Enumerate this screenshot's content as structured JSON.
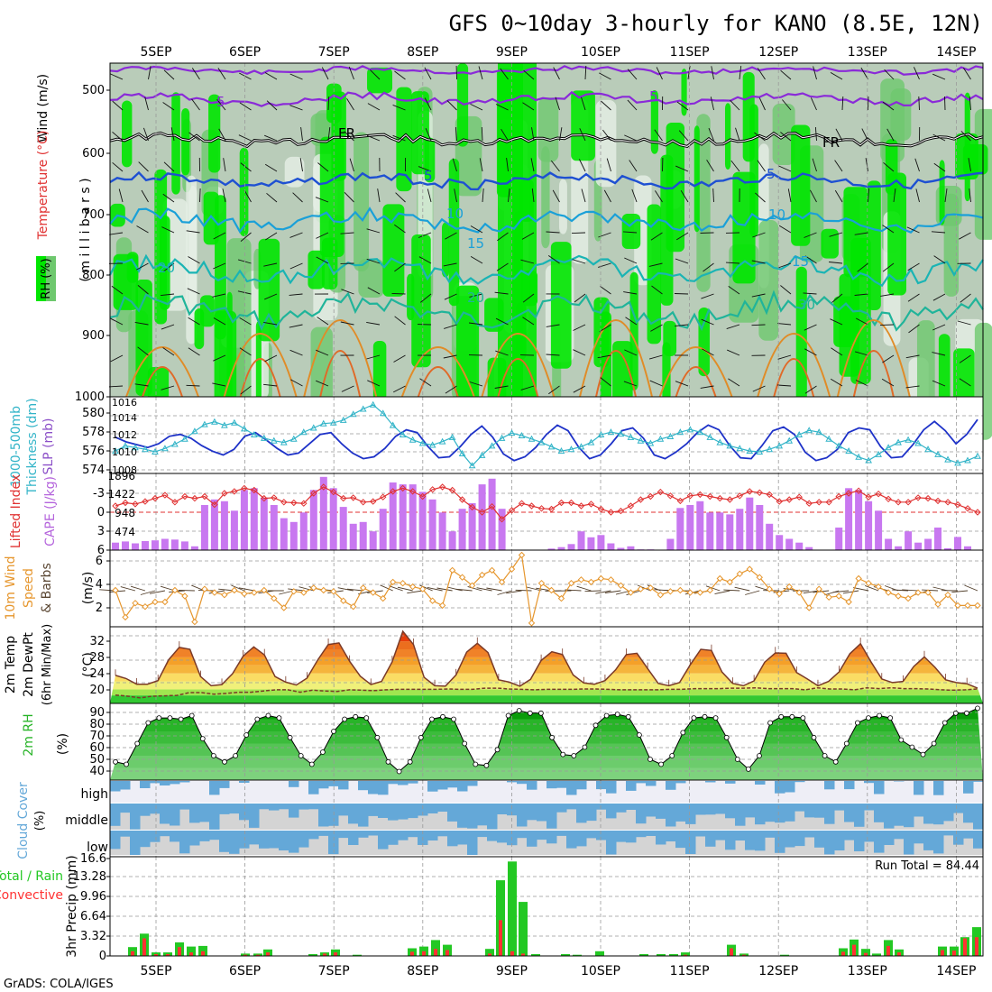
{
  "title": "GFS 0~10day 3-hourly for KANO (8.5E, 12N)",
  "footer": "GrADS: COLA/IGES",
  "dates": [
    "5SEP",
    "6SEP",
    "7SEP",
    "8SEP",
    "9SEP",
    "10SEP",
    "11SEP",
    "12SEP",
    "13SEP",
    "14SEP"
  ],
  "colors": {
    "rh_green": "#00e600",
    "rh_mid": "#6ec86e",
    "rh_gray": "#c8d4c8",
    "temp_purple": "#8a2ad8",
    "temp_blue": "#1e50d2",
    "temp_cyan": "#1aa0d8",
    "temp_teal": "#1ab4b4",
    "temp_orange": "#e08c28",
    "thickness": "#1e32c8",
    "slp": "#32b4c8",
    "cape": "#c878f0",
    "lifted": "#e03232",
    "wind": "#e6962d",
    "barb": "#503c28",
    "precip_total": "#23c823",
    "precip_conv": "#ff3232",
    "cloud": "#64a8d8"
  },
  "panels": {
    "upper": {
      "ylabel_wind": "Wind (m/s)",
      "ylabel_temp": "Temperature (°C)",
      "ylabel_rh": "RH (%)",
      "ylabel_mb": "( m i l l i b a r s )",
      "yticks": [
        "500",
        "600",
        "700",
        "800",
        "900",
        "1000"
      ],
      "contour_labels": [
        "5",
        "5",
        "FR",
        "FR",
        "5",
        "5",
        "10",
        "10",
        "15",
        "15",
        "20",
        "20",
        "30"
      ]
    },
    "thick": {
      "ylabel1": "1000-500mb",
      "ylabel2": "Thickness (dm)",
      "ylabel3": "SLP (mb)",
      "lticks": [
        "580",
        "578",
        "576",
        "574"
      ],
      "rticks": [
        "1016",
        "1014",
        "1012",
        "1010",
        "1008"
      ]
    },
    "cape": {
      "ylabel1": "Lifted Index",
      "ylabel2": "CAPE (J/kg)",
      "lticks": [
        "-3",
        "0",
        "3",
        "6"
      ],
      "rticks": [
        "1896",
        "1422",
        "948",
        "474"
      ]
    },
    "wind": {
      "ylabel1": "10m Wind",
      "ylabel2": "Speed",
      "ylabel3": "& Barbs",
      "unit": "(m/s)",
      "yticks": [
        "6",
        "4",
        "2"
      ]
    },
    "temp2m": {
      "ylabel1": "2m Temp",
      "ylabel2": "2m DewPt",
      "ylabel3": "(6hr Min/Max)",
      "unit": "(°C)",
      "yticks": [
        "32",
        "28",
        "24",
        "20"
      ]
    },
    "rh2m": {
      "ylabel": "2m RH",
      "unit": "(%)",
      "yticks": [
        "90",
        "80",
        "70",
        "60",
        "50",
        "40"
      ]
    },
    "cloud": {
      "ylabel1": "Cloud Cover",
      "unit": "(%)",
      "levels": [
        "high",
        "middle",
        "low"
      ]
    },
    "precip": {
      "ylabel1": "Total / Rain",
      "ylabel2": "Convective",
      "ylabel3": "3hr Precip (mm)",
      "yticks": [
        "16.6",
        "13.28",
        "9.96",
        "6.64",
        "3.32",
        "0"
      ],
      "run_total": "Run Total = 84.44"
    }
  },
  "chart_data": {
    "type": "meteogram",
    "title": "GFS 0~10day 3-hourly for KANO (8.5E, 12N)",
    "dates": [
      "5SEP",
      "6SEP",
      "7SEP",
      "8SEP",
      "9SEP",
      "10SEP",
      "11SEP",
      "12SEP",
      "13SEP",
      "14SEP"
    ],
    "thickness_dm": [
      577.5,
      577,
      576.7,
      576.4,
      576.8,
      577.6,
      577.8,
      577.4,
      576.6,
      576,
      575.6,
      576.2,
      577.6,
      578,
      577.2,
      576.3,
      575.6,
      575.8,
      576.8,
      577.8,
      578,
      576.8,
      575.8,
      575.2,
      575.4,
      576.3,
      577.6,
      578.3,
      578,
      576.5,
      575.3,
      575.4,
      576.5,
      577.8,
      578.7,
      577.5,
      575.7,
      575,
      575.4,
      576.4,
      577.8,
      578.8,
      578.2,
      576.4,
      575.2,
      575.6,
      576.8,
      578.2,
      578.5,
      577.4,
      575.6,
      575.2,
      575.9,
      576.8,
      578,
      578.8,
      578.3,
      576.6,
      575.3,
      575.2,
      576.6,
      578.2,
      578.6,
      577.8,
      575.9,
      575,
      575.3,
      576.2,
      578,
      578.5,
      578.3,
      576.5,
      575.3,
      575.4,
      576.7,
      578.3,
      579.2,
      578.2,
      576.8,
      577.8,
      579.4
    ],
    "slp_mb": [
      1010.2,
      1010.8,
      1010.6,
      1010.4,
      1010.1,
      1010.5,
      1011,
      1011.6,
      1012.5,
      1013.3,
      1013.6,
      1013.2,
      1013.5,
      1012.8,
      1012.1,
      1011.7,
      1011.4,
      1011.2,
      1011.6,
      1012.4,
      1012.9,
      1013.4,
      1013.5,
      1013.8,
      1014.5,
      1015.1,
      1015.6,
      1014.6,
      1013.2,
      1012.1,
      1011.5,
      1011.1,
      1010.9,
      1011.3,
      1011.8,
      1009.9,
      1008.5,
      1009.7,
      1010.8,
      1011.7,
      1012.3,
      1012,
      1011.6,
      1011.2,
      1010.7,
      1010.2,
      1010.4,
      1010.7,
      1011.2,
      1012.1,
      1012.4,
      1012.2,
      1011.8,
      1011.4,
      1011.1,
      1011.6,
      1011.9,
      1012.4,
      1012.7,
      1012.4,
      1011.8,
      1011.2,
      1010.8,
      1010.5,
      1010.2,
      1010.1,
      1010.4,
      1010.8,
      1011.4,
      1012.1,
      1012.6,
      1012.4,
      1011.6,
      1010.8,
      1010.2,
      1009.5,
      1009.1,
      1009.8,
      1010.6,
      1011.2,
      1011.5,
      1011.1,
      1010.4,
      1009.8,
      1009.2,
      1008.8,
      1009.1,
      1009.6
    ],
    "cape_jkg": [
      200,
      230,
      180,
      240,
      260,
      300,
      280,
      230,
      100,
      1200,
      1350,
      1300,
      1050,
      1600,
      1650,
      1400,
      1200,
      850,
      750,
      1000,
      1600,
      1950,
      1650,
      1150,
      700,
      750,
      500,
      1100,
      1800,
      1750,
      1750,
      1550,
      1350,
      1000,
      500,
      1100,
      1250,
      1750,
      1900,
      1100,
      0,
      0,
      0,
      0,
      40,
      80,
      160,
      500,
      340,
      400,
      180,
      60,
      100,
      20,
      20,
      0,
      300,
      1120,
      1200,
      1300,
      1000,
      1000,
      950,
      1100,
      1400,
      1200,
      700,
      400,
      300,
      200,
      80,
      0,
      0,
      600,
      1650,
      1600,
      1300,
      1050,
      300,
      100,
      500,
      200,
      300,
      600,
      50,
      350,
      100,
      0
    ],
    "lifted_index": [
      -1,
      -1.5,
      -1.3,
      -1.7,
      -2.2,
      -2.7,
      -1.6,
      -2.5,
      -2.2,
      -2.5,
      -1.2,
      -3,
      -3.3,
      -3.8,
      -3.5,
      -2.2,
      -2.3,
      -1.6,
      -1.5,
      -1.4,
      -3,
      -4,
      -3.2,
      -2.2,
      -2.3,
      -1.6,
      -1.7,
      -2.4,
      -3.3,
      -3.8,
      -3.3,
      -2.5,
      -3.6,
      -4,
      -3.5,
      -2,
      -0.8,
      0,
      -0.9,
      1.1,
      -0.3,
      -1.4,
      -1,
      -0.6,
      -0.5,
      -1.5,
      -1.5,
      -1,
      -1.3,
      -0.5,
      0,
      -0.2,
      -1,
      -2,
      -2.5,
      -3.2,
      -2.6,
      -1.8,
      -2.6,
      -2.8,
      -2.5,
      -2.2,
      -2,
      -2.6,
      -3.3,
      -3.1,
      -2.8,
      -1.7,
      -2,
      -2.4,
      -1.4,
      -1.6,
      -1.6,
      -2.5,
      -3,
      -3.4,
      -2.4,
      -2.9,
      -2.1,
      -1.6,
      -1.6,
      -2.3,
      -2.2,
      -1.8,
      -1.6,
      -1.2,
      -0.6,
      0
    ],
    "wind_speed_ms": [
      3.5,
      1.2,
      2.4,
      2.1,
      2.5,
      2.5,
      3.5,
      3.0,
      0.8,
      3.6,
      3.3,
      3.1,
      3.5,
      3.2,
      3.3,
      3.5,
      2.8,
      2.0,
      3.4,
      3.3,
      3.7,
      3.5,
      3.4,
      2.6,
      2.1,
      3.7,
      3.3,
      2.8,
      4.2,
      4.1,
      3.8,
      3.6,
      2.6,
      2.2,
      5.2,
      4.6,
      3.9,
      4.8,
      5.2,
      4.2,
      5.3,
      6.5,
      0.7,
      4.1,
      3.5,
      2.8,
      4.1,
      4.4,
      4.2,
      4.5,
      4.4,
      3.9,
      3.3,
      3.6,
      3.7,
      3.1,
      3.4,
      3.5,
      3.3,
      3.3,
      3.5,
      4.5,
      4.2,
      4.9,
      5.3,
      4.6,
      3.6,
      3.2,
      3.8,
      3.3,
      2.0,
      3.6,
      2.9,
      3.0,
      2.5,
      4.5,
      4.1,
      3.8,
      3.3,
      3.0,
      2.8,
      3.3,
      3.3,
      2.3,
      3.1,
      2.2,
      2.2,
      2.2
    ],
    "temp2m_c": [
      23.5,
      22.7,
      21.3,
      21.3,
      22.2,
      27.4,
      30.5,
      30.0,
      23.2,
      20.9,
      21.2,
      23.9,
      28.3,
      30.6,
      28.6,
      23.2,
      21.8,
      21.1,
      22.8,
      27.3,
      31.2,
      31.6,
      27.0,
      23.3,
      21.2,
      22.0,
      26.9,
      34.5,
      31.2,
      23.0,
      20.9,
      20.8,
      23.6,
      29.3,
      31.5,
      29.2,
      22.4,
      21.8,
      20.8,
      22.5,
      27.2,
      29.4,
      28.7,
      23.6,
      21.6,
      21.3,
      22.2,
      24.9,
      28.7,
      29.0,
      25.2,
      21.5,
      20.9,
      21.7,
      26.1,
      30.0,
      29.7,
      24.3,
      21.5,
      20.9,
      22.1,
      26.8,
      29.1,
      29.0,
      24.2,
      22.6,
      20.9,
      22.0,
      24.4,
      28.9,
      31.4,
      26.8,
      22.6,
      21.7,
      22.0,
      25.7,
      28.1,
      25.5,
      22.4,
      21.7,
      21.4,
      20.3
    ],
    "dewpt2m_c": [
      18.6,
      18.3,
      17.9,
      18.3,
      18.4,
      18.5,
      19.2,
      19.2,
      18.8,
      19.0,
      19.3,
      19.3,
      19.6,
      19.9,
      19.9,
      19.3,
      19.8,
      19.6,
      19.5,
      19.9,
      19.8,
      19.7,
      19.9,
      20.0,
      20.0,
      20.0,
      20.0,
      20.1,
      20.0,
      20.0,
      20.3,
      20.3,
      20.1,
      20.0,
      19.9,
      20.0,
      20.0,
      20.0,
      20.1,
      20.1,
      20.0,
      19.9,
      19.9,
      19.9,
      19.9,
      20.0,
      20.0,
      20.2,
      20.2,
      20.2,
      20.3,
      20.3,
      20.4,
      20.2,
      20.2,
      20.2,
      19.9,
      20.4,
      20.1,
      20.1,
      19.9,
      20.4,
      20.2,
      20.4,
      20.2,
      20.2,
      20.1,
      19.9,
      19.8,
      19.9,
      20.1
    ],
    "rh2m_pct": [
      50,
      48,
      65,
      82,
      86,
      86,
      85,
      88,
      69,
      55,
      50,
      55,
      72,
      85,
      88,
      86,
      70,
      55,
      48,
      58,
      75,
      85,
      87,
      86,
      70,
      50,
      42,
      50,
      70,
      85,
      87,
      85,
      65,
      48,
      47,
      60,
      88,
      92,
      90,
      90,
      70,
      56,
      55,
      62,
      80,
      88,
      89,
      87,
      72,
      52,
      48,
      55,
      74,
      86,
      87,
      86,
      70,
      52,
      44,
      55,
      82,
      87,
      87,
      86,
      70,
      55,
      50,
      65,
      82,
      86,
      88,
      86,
      68,
      62,
      56,
      65,
      82,
      90,
      90,
      94
    ]
  }
}
